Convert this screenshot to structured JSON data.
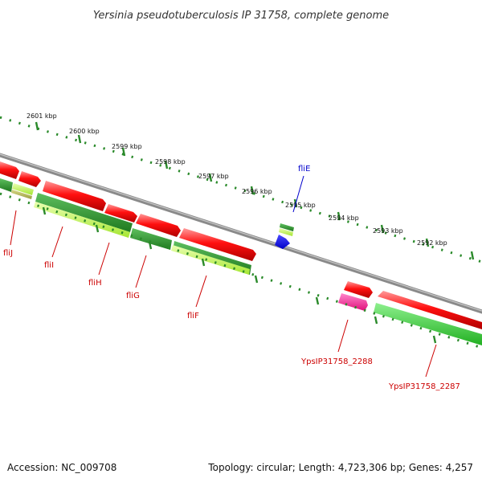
{
  "title": "Yersinia pseudotuberculosis IP 31758, complete genome",
  "footer": {
    "accession": "Accession: NC_009708",
    "summary": "Topology: circular; Length: 4,723,306 bp; Genes: 4,257"
  },
  "colors": {
    "backbone": "#8a8a8a",
    "ruler": "#2a8a2a",
    "forward_gene": "#ff0000",
    "cds_dark": "#2e8b2e",
    "cds_light": "#b0f040",
    "label_red": "#cc0000",
    "label_blue": "#0000cc",
    "special_blue": "#0000ff",
    "special_magenta": "#ff1493"
  },
  "ruler_labels": [
    "2601 kbp",
    "2600 kbp",
    "2599 kbp",
    "2598 kbp",
    "2597 kbp",
    "2596 kbp",
    "2595 kbp",
    "2594 kbp",
    "2593 kbp",
    "2592 kbp"
  ],
  "gene_labels": [
    "fliJ",
    "fliI",
    "fliH",
    "fliG",
    "fliF",
    "fliE",
    "YpsIP31758_2288",
    "YpsIP31758_2287"
  ]
}
